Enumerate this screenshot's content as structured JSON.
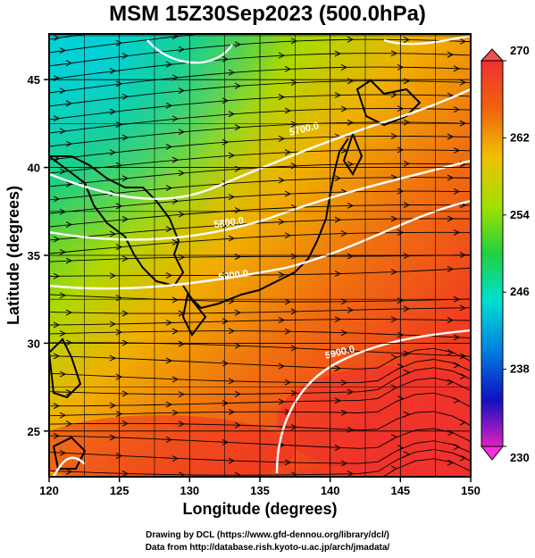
{
  "title": "MSM 15Z30Sep2023 (500.0hPa)",
  "credits": {
    "line1": "Drawing by DCL (https://www.gfd-dennou.org/library/dcl/)",
    "line2": "Data from http://database.rish.kyoto-u.ac.jp/arch/jmadata/"
  },
  "map": {
    "lon_range": [
      120,
      150
    ],
    "lat_range": [
      22.4,
      47.6
    ],
    "xlabel": "Longitude (degrees)",
    "ylabel": "Latitude  (degrees)",
    "x_ticks": [
      "120",
      "125",
      "130",
      "135",
      "140",
      "145",
      "150"
    ],
    "y_ticks": [
      "25",
      "30",
      "35",
      "40",
      "45"
    ],
    "contour_labels": [
      "5700.0",
      "5800.0",
      "5900.0"
    ],
    "fill_colors": {
      "cold": "#00e0d0",
      "mid": "#20d040",
      "warm": "#f0a000",
      "hot": "#f03020"
    }
  },
  "colorbar": {
    "min": 230,
    "max": 270,
    "ticks": [
      "270",
      "262",
      "254",
      "246",
      "238",
      "230"
    ]
  }
}
